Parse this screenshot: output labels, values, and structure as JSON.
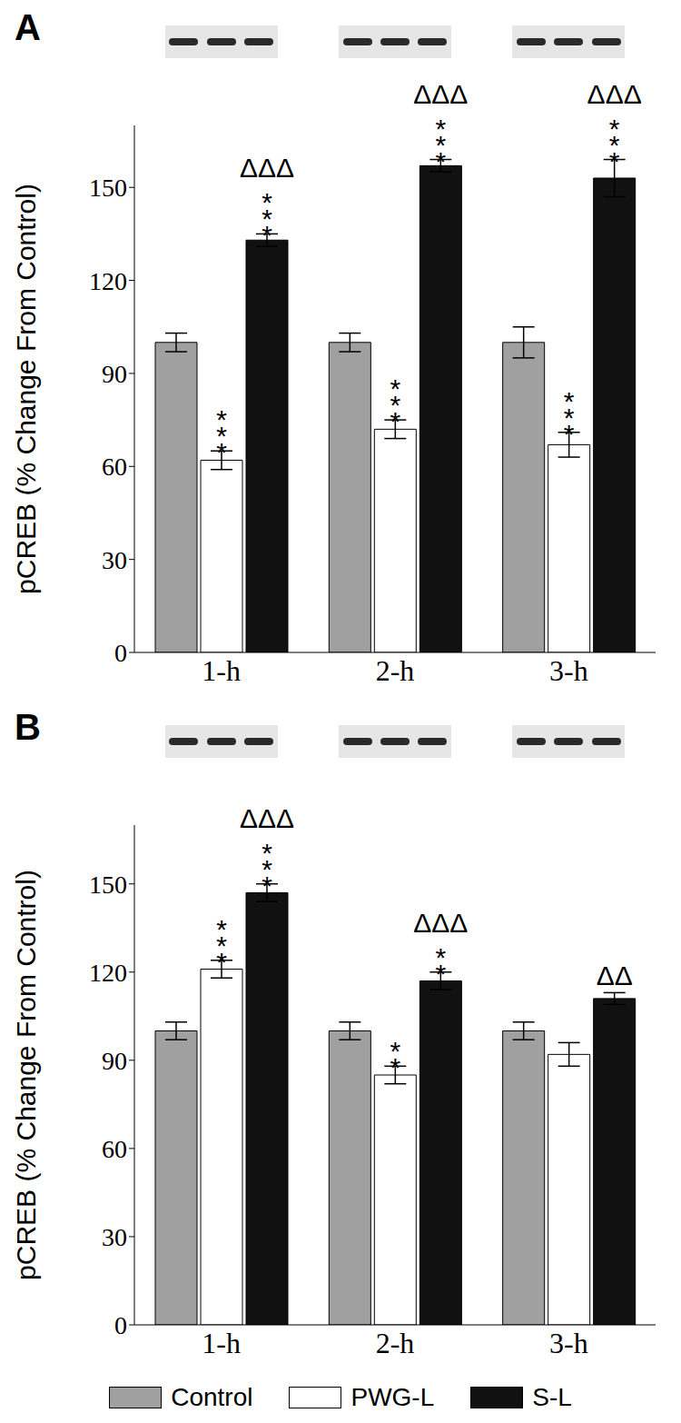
{
  "chart_data": [
    {
      "type": "bar",
      "title": "A",
      "y_label": "pCREB (% Change From Control)",
      "categories": [
        "1-h",
        "2-h",
        "3-h"
      ],
      "ylim": [
        0,
        170
      ],
      "yticks": [
        0,
        30,
        60,
        90,
        120,
        150
      ],
      "series": [
        {
          "name": "Control",
          "color": "#a0a0a0",
          "values": [
            100,
            100,
            100
          ],
          "errors": [
            3,
            3,
            5
          ],
          "significance": [
            null,
            null,
            null
          ],
          "significance_vs_pwg": [
            null,
            null,
            null
          ]
        },
        {
          "name": "PWG-L",
          "color": "#ffffff",
          "values": [
            62,
            72,
            67
          ],
          "errors": [
            3,
            3,
            4
          ],
          "significance": [
            "***",
            "***",
            "***"
          ],
          "significance_vs_pwg": [
            null,
            null,
            null
          ]
        },
        {
          "name": "S-L",
          "color": "#111111",
          "values": [
            133,
            157,
            153
          ],
          "errors": [
            2,
            2,
            6
          ],
          "significance": [
            "***",
            "***",
            "***"
          ],
          "significance_vs_pwg": [
            "ΔΔΔ",
            "ΔΔΔ",
            "ΔΔΔ"
          ]
        }
      ]
    },
    {
      "type": "bar",
      "title": "B",
      "y_label": "pCREB (% Change From Control)",
      "categories": [
        "1-h",
        "2-h",
        "3-h"
      ],
      "ylim": [
        0,
        170
      ],
      "yticks": [
        0,
        30,
        60,
        90,
        120,
        150
      ],
      "series": [
        {
          "name": "Control",
          "color": "#a0a0a0",
          "values": [
            100,
            100,
            100
          ],
          "errors": [
            3,
            3,
            3
          ],
          "significance": [
            null,
            null,
            null
          ],
          "significance_vs_pwg": [
            null,
            null,
            null
          ]
        },
        {
          "name": "PWG-L",
          "color": "#ffffff",
          "values": [
            121,
            85,
            92
          ],
          "errors": [
            3,
            3,
            4
          ],
          "significance": [
            "***",
            "**",
            null
          ],
          "significance_vs_pwg": [
            null,
            null,
            null
          ]
        },
        {
          "name": "S-L",
          "color": "#111111",
          "values": [
            147,
            117,
            111
          ],
          "errors": [
            3,
            3,
            2
          ],
          "significance": [
            "***",
            "**",
            null
          ],
          "significance_vs_pwg": [
            "ΔΔΔ",
            "ΔΔΔ",
            "ΔΔ"
          ]
        }
      ]
    }
  ]
}
